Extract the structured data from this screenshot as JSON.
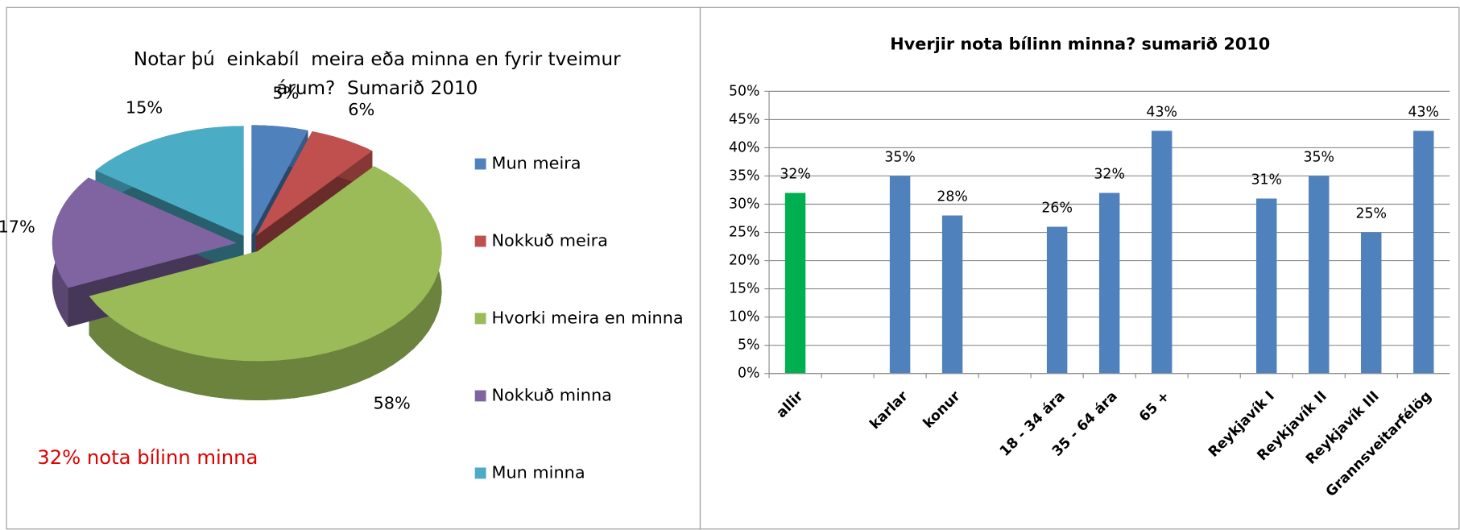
{
  "pie_chart": {
    "chart_data": {
      "type": "pie",
      "title": "Notar þú  einkabíl  meira eða minna en fyrir tveimur árum?  Sumarið 2010",
      "categories": [
        "Mun meira",
        "Nokkuð meira",
        "Hvorki meira en minna",
        "Nokkuð minna",
        "Mun minna"
      ],
      "values": [
        5,
        6,
        58,
        17,
        15
      ],
      "value_labels": [
        "5%",
        "6%",
        "58%",
        "17%",
        "15%"
      ],
      "colors": [
        "#4f81bd",
        "#c0504d",
        "#9bbb59",
        "#8064a2",
        "#4bacc6"
      ],
      "legend": "right",
      "annotation": "32% nota bílinn minna"
    }
  },
  "bar_chart": {
    "chart_data": {
      "type": "bar",
      "title": "Hverjir nota  bílinn minna? sumarið 2010",
      "categories": [
        "allir",
        null,
        "karlar",
        "konur",
        null,
        "18 - 34 ára",
        "35 - 64 ára",
        "65 +",
        null,
        "Reykjavík I",
        "Reykjavík II",
        "Reykjavík III",
        "Grannsveitarfélög"
      ],
      "values": [
        32,
        null,
        35,
        28,
        null,
        26,
        32,
        43,
        null,
        31,
        35,
        25,
        43
      ],
      "value_labels": [
        "32%",
        null,
        "35%",
        "28%",
        null,
        "26%",
        "32%",
        "43%",
        null,
        "31%",
        "35%",
        "25%",
        "43%"
      ],
      "colors": [
        "#00b050",
        null,
        "#4f81bd",
        "#4f81bd",
        null,
        "#4f81bd",
        "#4f81bd",
        "#4f81bd",
        null,
        "#4f81bd",
        "#4f81bd",
        "#4f81bd",
        "#4f81bd"
      ],
      "ylim": [
        0,
        50
      ],
      "yticks": [
        {
          "value": 0,
          "label": "0%"
        },
        {
          "value": 5,
          "label": "5%"
        },
        {
          "value": 10,
          "label": "10%"
        },
        {
          "value": 15,
          "label": "15%"
        },
        {
          "value": 20,
          "label": "20%"
        },
        {
          "value": 25,
          "label": "25%"
        },
        {
          "value": 30,
          "label": "30%"
        },
        {
          "value": 35,
          "label": "35%"
        },
        {
          "value": 40,
          "label": "40%"
        },
        {
          "value": 45,
          "label": "45%"
        },
        {
          "value": 50,
          "label": "50%"
        }
      ],
      "grid": true
    }
  }
}
